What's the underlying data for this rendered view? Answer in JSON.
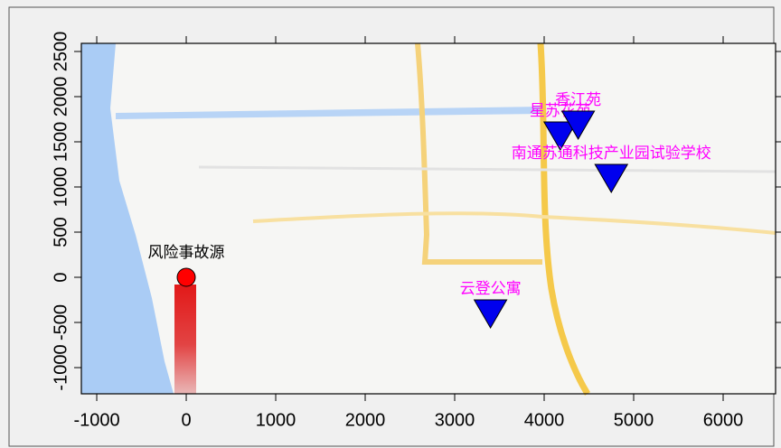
{
  "chart_data": {
    "type": "scatter",
    "x": [
      0,
      3400,
      4180,
      4380,
      4750
    ],
    "values": [
      0,
      -400,
      1570,
      1690,
      1100
    ],
    "point_labels": [
      "风险事故源",
      "云登公寓",
      "星苏花苑",
      "香江苑",
      "南通苏通科技产业园试验学校"
    ],
    "markers": [
      "circle",
      "triangle",
      "triangle",
      "triangle",
      "triangle"
    ],
    "colors": [
      "#ff0000",
      "#0000ee",
      "#0000ee",
      "#0000ee",
      "#0000ee"
    ],
    "label_colors": [
      "#000000",
      "#ff00ff",
      "#ff00ff",
      "#ff00ff",
      "#ff00ff"
    ],
    "xlim": [
      -1172,
      6586
    ],
    "xticks": [
      -1000,
      0,
      1000,
      2000,
      3000,
      4000,
      5000,
      6000
    ],
    "ylim": [
      -1290,
      2590
    ],
    "yticks": [
      -1000,
      -500,
      0,
      500,
      1000,
      1500,
      2000,
      2500
    ]
  }
}
